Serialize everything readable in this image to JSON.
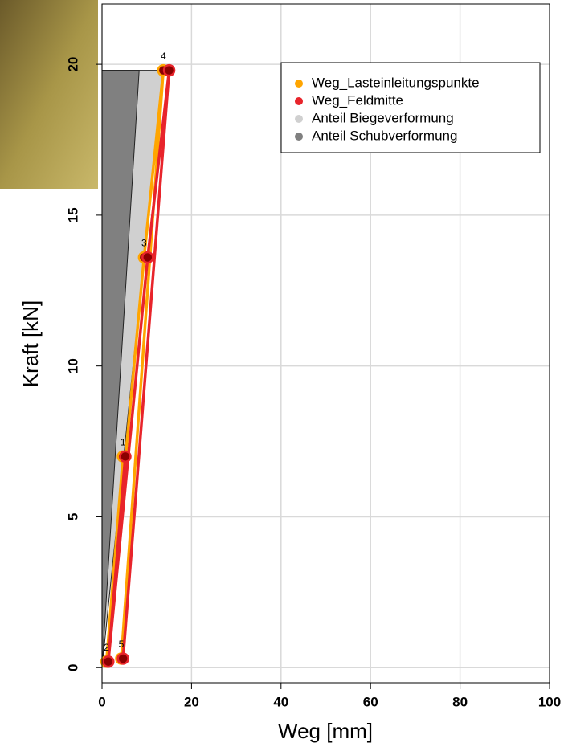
{
  "chart_data": {
    "type": "scatter",
    "xlabel": "Weg [mm]",
    "ylabel": "Kraft [kN]",
    "xlim": [
      0,
      100
    ],
    "ylim": [
      -0.5,
      22
    ],
    "xticks": [
      0,
      20,
      40,
      60,
      80,
      100
    ],
    "yticks": [
      0,
      5,
      10,
      15,
      20
    ],
    "grid": true,
    "legend": "top-right",
    "point_labels": [
      "1",
      "2",
      "3",
      "4",
      "5"
    ],
    "marker_color": "#8b0000",
    "series": [
      {
        "name": "Weg_Lasteinleitungspunkte",
        "color": "#ffa500",
        "x": [
          4.7,
          1.0,
          9.4,
          13.7,
          4.3
        ],
        "values": [
          7.0,
          0.2,
          13.6,
          19.8,
          0.3
        ]
      },
      {
        "name": "Weg_Feldmitte",
        "color": "#e8242b",
        "x": [
          5.2,
          1.4,
          10.2,
          15.0,
          4.7
        ],
        "values": [
          7.0,
          0.2,
          13.6,
          19.8,
          0.3
        ]
      },
      {
        "name": "Anteil Biegeverformung",
        "type": "area",
        "color": "#d0d0d0",
        "x": [
          0,
          13.7
        ],
        "values": [
          0,
          19.8
        ]
      },
      {
        "name": "Anteil Schubverformung",
        "type": "area",
        "color": "#808080",
        "x": [
          0,
          8.3
        ],
        "values": [
          0,
          19.8
        ]
      }
    ]
  }
}
